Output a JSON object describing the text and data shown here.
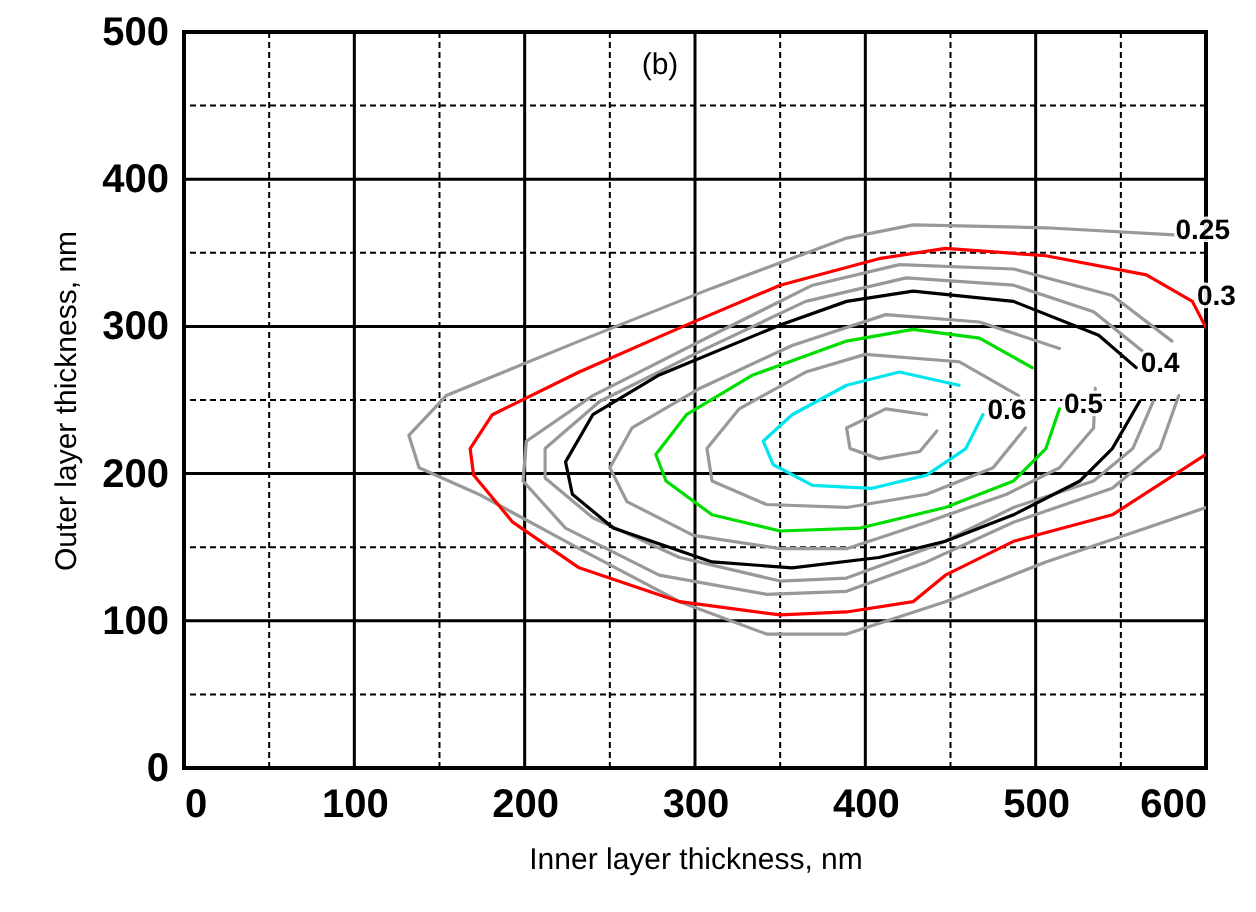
{
  "chart_data": {
    "type": "line",
    "xlabel": "Inner layer thickness, nm",
    "ylabel": "Outer layer thickness, nm",
    "xlim": [
      0,
      600
    ],
    "ylim": [
      0,
      500
    ],
    "xticks": [
      0,
      {
        "value": 50,
        "label": null
      },
      100,
      {
        "value": 150,
        "label": null
      },
      200,
      {
        "value": 250,
        "label": null
      },
      300,
      {
        "value": 350,
        "label": null
      },
      400,
      {
        "value": 450,
        "label": null
      },
      500,
      {
        "value": 550,
        "label": null
      },
      600
    ],
    "yticks": [
      0,
      {
        "value": 50,
        "label": null
      },
      100,
      {
        "value": 150,
        "label": null
      },
      200,
      {
        "value": 250,
        "label": null
      },
      300,
      {
        "value": 350,
        "label": null
      },
      400,
      {
        "value": 450,
        "label": null
      },
      500
    ],
    "grid": true,
    "line_style": "solid",
    "series": [
      {
        "color": "#999999",
        "x": [
          584,
          506,
          428,
          389,
          310,
          232,
          154,
          132,
          138,
          173,
          232,
          291,
          342,
          389,
          447,
          506,
          565,
          600
        ],
        "values": [
          362,
          367,
          369,
          360,
          326,
          290,
          253,
          226,
          204,
          186,
          149,
          113,
          91,
          91,
          113,
          140,
          163,
          177
        ]
      },
      {
        "color": "#ff0000",
        "x": [
          600,
          592,
          565,
          506,
          447,
          408,
          350,
          291,
          232,
          181,
          168,
          170,
          193,
          232,
          291,
          350,
          389,
          428,
          447,
          487,
          545,
          600
        ],
        "values": [
          299,
          317,
          335,
          348,
          353,
          346,
          328,
          299,
          269,
          240,
          217,
          199,
          167,
          136,
          113,
          104,
          106,
          113,
          131,
          154,
          172,
          213
        ]
      },
      {
        "color": "#999999",
        "x": [
          584,
          573,
          545,
          487,
          436,
          389,
          342,
          279,
          224,
          199,
          201,
          240,
          310,
          369,
          420,
          487,
          545,
          580
        ],
        "values": [
          253,
          217,
          190,
          167,
          140,
          120,
          118,
          131,
          163,
          195,
          222,
          253,
          294,
          328,
          342,
          339,
          321,
          290
        ]
      },
      {
        "color": "#999999",
        "x": [
          569,
          557,
          534,
          487,
          443,
          389,
          350,
          291,
          240,
          212,
          212,
          244,
          303,
          365,
          424,
          487,
          534,
          565
        ],
        "values": [
          249,
          217,
          195,
          177,
          152,
          129,
          127,
          143,
          170,
          197,
          217,
          249,
          283,
          317,
          333,
          328,
          310,
          281
        ]
      },
      {
        "color": "#000000",
        "x": [
          561,
          545,
          526,
          487,
          447,
          408,
          357,
          310,
          252,
          228,
          224,
          240,
          279,
          350,
          389,
          428,
          487,
          537,
          559
        ],
        "values": [
          249,
          217,
          195,
          172,
          154,
          143,
          136,
          140,
          163,
          186,
          208,
          240,
          267,
          301,
          317,
          324,
          317,
          294,
          272
        ]
      },
      {
        "color": "#999999",
        "x": [
          535,
          534,
          514,
          483,
          436,
          389,
          350,
          299,
          260,
          250,
          263,
          303,
          357,
          412,
          467,
          514
        ],
        "values": [
          258,
          231,
          204,
          186,
          167,
          149,
          149,
          158,
          181,
          204,
          231,
          258,
          287,
          308,
          303,
          285
        ]
      },
      {
        "color": "#00dd00",
        "x": [
          514,
          506,
          487,
          447,
          397,
          350,
          310,
          283,
          277,
          295,
          334,
          389,
          428,
          467,
          498
        ],
        "values": [
          244,
          217,
          195,
          177,
          163,
          161,
          172,
          195,
          213,
          240,
          267,
          290,
          298,
          292,
          272
        ]
      },
      {
        "color": "#999999",
        "x": [
          494,
          475,
          436,
          389,
          342,
          310,
          307,
          326,
          365,
          400,
          455,
          490
        ],
        "values": [
          231,
          204,
          186,
          177,
          179,
          195,
          217,
          244,
          269,
          281,
          276,
          253
        ]
      },
      {
        "color": "#00e5ee",
        "x": [
          469,
          459,
          436,
          404,
          369,
          346,
          340,
          357,
          389,
          420,
          455
        ],
        "values": [
          240,
          217,
          199,
          190,
          192,
          206,
          222,
          240,
          260,
          269,
          260
        ]
      },
      {
        "color": "#999999",
        "x": [
          442,
          432,
          408,
          391,
          389,
          412,
          436
        ],
        "values": [
          229,
          215,
          210,
          217,
          231,
          244,
          240
        ]
      }
    ],
    "annotations": [
      "(b)",
      {
        "text": "0.25",
        "x": 584,
        "y": 362
      },
      {
        "text": "0.3",
        "x": 592,
        "y": 317
      },
      {
        "text": "0.4",
        "x": 559,
        "y": 272
      },
      {
        "text": "0.5",
        "x": 514,
        "y": 244
      },
      {
        "text": "0.6",
        "x": 469,
        "y": 240
      }
    ]
  }
}
